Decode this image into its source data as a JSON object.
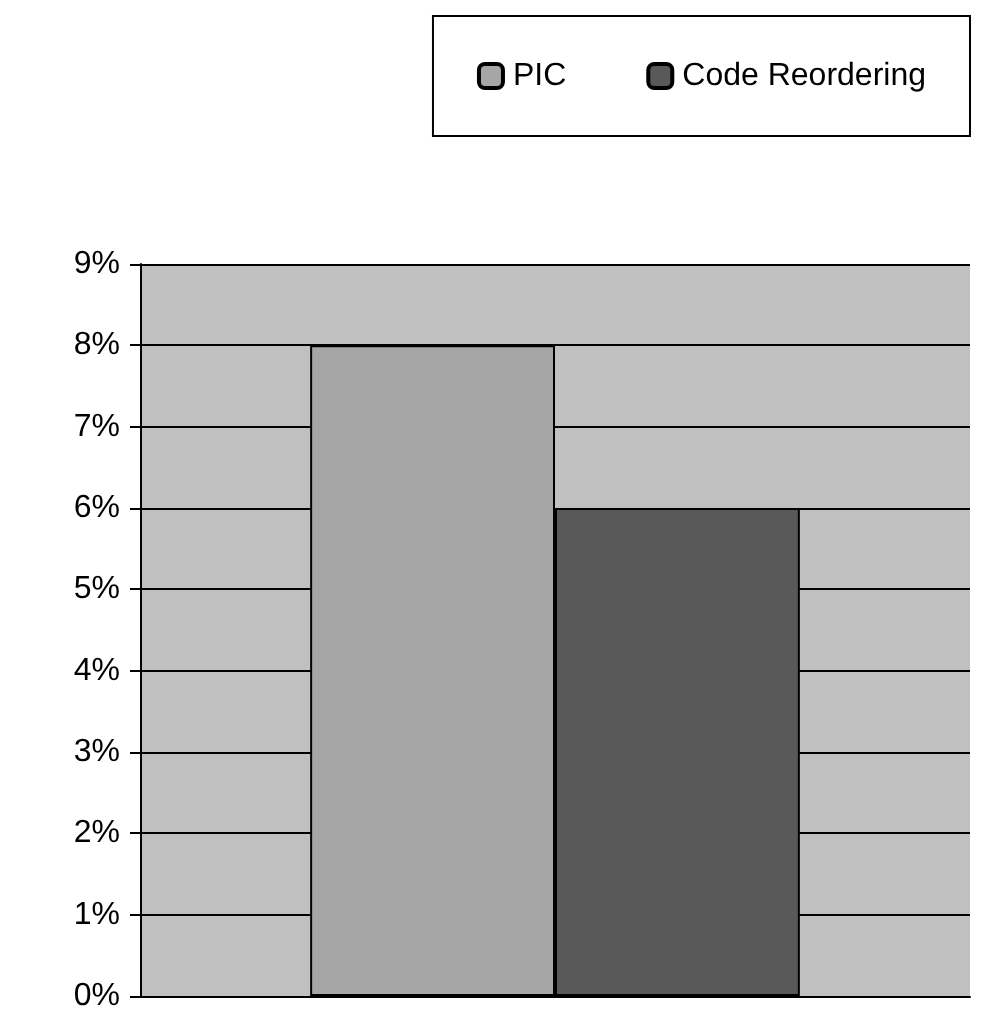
{
  "chart_data": {
    "type": "bar",
    "categories": [
      null
    ],
    "series": [
      {
        "name": "PIC",
        "color": "#a6a6a6",
        "values": [
          8
        ]
      },
      {
        "name": "Code Reordering",
        "color": "#595959",
        "values": [
          6
        ]
      }
    ],
    "ylim": [
      0,
      9
    ],
    "yticks": [
      {
        "value": 0,
        "label": "0%"
      },
      {
        "value": 1,
        "label": "1%"
      },
      {
        "value": 2,
        "label": "2%"
      },
      {
        "value": 3,
        "label": "3%"
      },
      {
        "value": 4,
        "label": "4%"
      },
      {
        "value": 5,
        "label": "5%"
      },
      {
        "value": 6,
        "label": "6%"
      },
      {
        "value": 7,
        "label": "7%"
      },
      {
        "value": 8,
        "label": "8%"
      },
      {
        "value": 9,
        "label": "9%"
      }
    ],
    "grid": "y",
    "legend": "top"
  }
}
